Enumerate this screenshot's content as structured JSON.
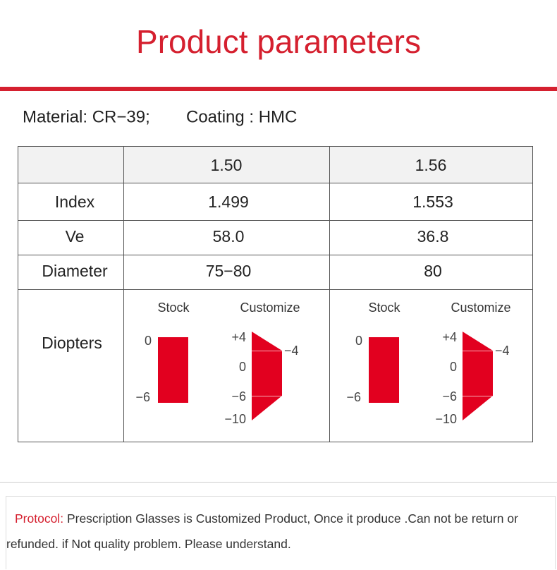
{
  "header": {
    "title": "Product parameters"
  },
  "material": {
    "material": "Material: CR−39;",
    "coating": "Coating : HMC"
  },
  "table": {
    "columns": [
      "1.50",
      "1.56"
    ],
    "rows": [
      [
        "Index",
        "1.499",
        "1.553"
      ],
      [
        "Ve",
        "58.0",
        "36.8"
      ],
      [
        "Diameter",
        "75−80",
        "80"
      ]
    ]
  },
  "diopters": {
    "label": "Diopters",
    "panels": [
      {
        "stock": {
          "title": "Stock",
          "labels": [
            "0",
            "−6"
          ]
        },
        "customize": {
          "title": "Customize",
          "labels": [
            "+4",
            "−4",
            "0",
            "−6",
            "−10"
          ]
        }
      },
      {
        "stock": {
          "title": "Stock",
          "labels": [
            "0",
            "−6"
          ]
        },
        "customize": {
          "title": "Customize",
          "labels": [
            "+4",
            "−4",
            "0",
            "−6",
            "−10"
          ]
        }
      }
    ]
  },
  "protocol": {
    "label": "Protocol:",
    "text": "Prescription Glasses is Customized Product, Once it produce .Can not be return or refunded. if Not quality problem. Please understand."
  }
}
